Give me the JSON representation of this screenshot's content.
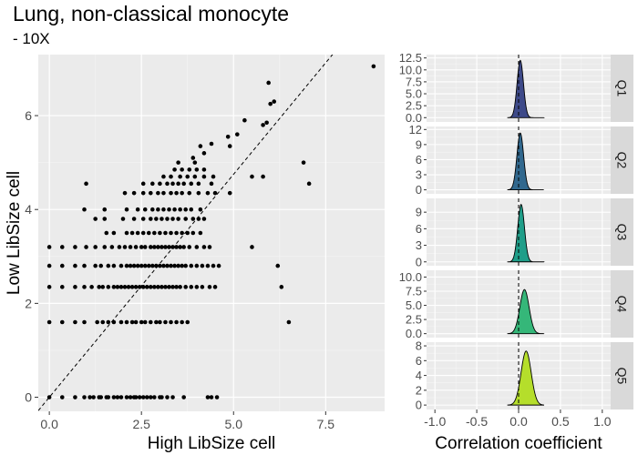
{
  "title": "Lung, non-classical monocyte",
  "subtitle": "- 10X",
  "chart_data": [
    {
      "type": "scatter",
      "xlabel": "High LibSize cell",
      "ylabel": "Low LibSize cell",
      "xlim": [
        -0.3,
        9.1
      ],
      "ylim": [
        -0.3,
        7.3
      ],
      "xticks": [
        0.0,
        2.5,
        5.0,
        7.5
      ],
      "xtick_labels": [
        "0.0",
        "2.5",
        "5.0",
        "7.5"
      ],
      "yticks": [
        0,
        2,
        4,
        6
      ],
      "ytick_labels": [
        "0",
        "2",
        "4",
        "6"
      ],
      "reference_line": {
        "style": "dashed",
        "intercept": 0,
        "slope": 0.95
      },
      "grid": true,
      "point_color": "#000000",
      "points": [
        [
          0.0,
          0.0
        ],
        [
          0.35,
          0.0
        ],
        [
          0.7,
          0.0
        ],
        [
          0.95,
          0.0
        ],
        [
          1.1,
          0.0
        ],
        [
          1.2,
          0.0
        ],
        [
          1.35,
          0.0
        ],
        [
          1.4,
          0.0
        ],
        [
          1.55,
          0.0
        ],
        [
          1.6,
          0.0
        ],
        [
          1.75,
          0.0
        ],
        [
          1.85,
          0.0
        ],
        [
          1.95,
          0.0
        ],
        [
          2.1,
          0.0
        ],
        [
          2.2,
          0.0
        ],
        [
          2.3,
          0.0
        ],
        [
          2.35,
          0.0
        ],
        [
          2.45,
          0.0
        ],
        [
          2.55,
          0.0
        ],
        [
          2.65,
          0.0
        ],
        [
          2.75,
          0.0
        ],
        [
          2.85,
          0.0
        ],
        [
          3.0,
          0.0
        ],
        [
          3.05,
          0.0
        ],
        [
          3.2,
          0.0
        ],
        [
          3.35,
          0.0
        ],
        [
          3.65,
          0.0
        ],
        [
          4.3,
          0.0
        ],
        [
          4.4,
          0.0
        ],
        [
          4.55,
          0.0
        ],
        [
          0.0,
          1.6
        ],
        [
          0.35,
          1.6
        ],
        [
          0.7,
          1.6
        ],
        [
          0.95,
          1.6
        ],
        [
          1.3,
          1.6
        ],
        [
          1.45,
          1.6
        ],
        [
          1.6,
          1.6
        ],
        [
          1.75,
          1.6
        ],
        [
          1.95,
          1.6
        ],
        [
          2.1,
          1.6
        ],
        [
          2.25,
          1.6
        ],
        [
          2.35,
          1.6
        ],
        [
          2.5,
          1.6
        ],
        [
          2.6,
          1.6
        ],
        [
          2.75,
          1.6
        ],
        [
          2.9,
          1.6
        ],
        [
          3.0,
          1.6
        ],
        [
          3.15,
          1.6
        ],
        [
          3.3,
          1.6
        ],
        [
          3.45,
          1.6
        ],
        [
          3.6,
          1.6
        ],
        [
          3.75,
          1.6
        ],
        [
          6.5,
          1.6
        ],
        [
          0.0,
          2.35
        ],
        [
          0.35,
          2.35
        ],
        [
          0.7,
          2.35
        ],
        [
          0.95,
          2.35
        ],
        [
          1.15,
          2.35
        ],
        [
          1.35,
          2.35
        ],
        [
          1.45,
          2.35
        ],
        [
          1.6,
          2.35
        ],
        [
          1.75,
          2.35
        ],
        [
          1.85,
          2.35
        ],
        [
          1.95,
          2.35
        ],
        [
          2.05,
          2.35
        ],
        [
          2.15,
          2.35
        ],
        [
          2.25,
          2.35
        ],
        [
          2.35,
          2.35
        ],
        [
          2.45,
          2.35
        ],
        [
          2.55,
          2.35
        ],
        [
          2.65,
          2.35
        ],
        [
          2.75,
          2.35
        ],
        [
          2.85,
          2.35
        ],
        [
          2.95,
          2.35
        ],
        [
          3.05,
          2.35
        ],
        [
          3.15,
          2.35
        ],
        [
          3.25,
          2.35
        ],
        [
          3.35,
          2.35
        ],
        [
          3.45,
          2.35
        ],
        [
          3.55,
          2.35
        ],
        [
          3.7,
          2.35
        ],
        [
          3.85,
          2.35
        ],
        [
          4.0,
          2.35
        ],
        [
          4.15,
          2.35
        ],
        [
          4.35,
          2.35
        ],
        [
          4.5,
          2.35
        ],
        [
          6.3,
          2.35
        ],
        [
          0.0,
          2.8
        ],
        [
          0.35,
          2.8
        ],
        [
          0.7,
          2.8
        ],
        [
          0.95,
          2.8
        ],
        [
          1.25,
          2.8
        ],
        [
          1.4,
          2.8
        ],
        [
          1.6,
          2.8
        ],
        [
          1.75,
          2.8
        ],
        [
          1.95,
          2.8
        ],
        [
          2.1,
          2.8
        ],
        [
          2.2,
          2.8
        ],
        [
          2.3,
          2.8
        ],
        [
          2.4,
          2.8
        ],
        [
          2.5,
          2.8
        ],
        [
          2.6,
          2.8
        ],
        [
          2.7,
          2.8
        ],
        [
          2.8,
          2.8
        ],
        [
          2.9,
          2.8
        ],
        [
          3.0,
          2.8
        ],
        [
          3.1,
          2.8
        ],
        [
          3.2,
          2.8
        ],
        [
          3.3,
          2.8
        ],
        [
          3.4,
          2.8
        ],
        [
          3.5,
          2.8
        ],
        [
          3.6,
          2.8
        ],
        [
          3.7,
          2.8
        ],
        [
          3.85,
          2.8
        ],
        [
          4.0,
          2.8
        ],
        [
          4.15,
          2.8
        ],
        [
          4.3,
          2.8
        ],
        [
          4.45,
          2.8
        ],
        [
          4.6,
          2.8
        ],
        [
          6.2,
          2.8
        ],
        [
          0.0,
          3.2
        ],
        [
          0.35,
          3.2
        ],
        [
          0.7,
          3.2
        ],
        [
          1.0,
          3.2
        ],
        [
          1.25,
          3.2
        ],
        [
          1.5,
          3.2
        ],
        [
          1.7,
          3.2
        ],
        [
          1.9,
          3.2
        ],
        [
          2.05,
          3.2
        ],
        [
          2.2,
          3.2
        ],
        [
          2.35,
          3.2
        ],
        [
          2.5,
          3.2
        ],
        [
          2.6,
          3.2
        ],
        [
          2.75,
          3.2
        ],
        [
          2.85,
          3.2
        ],
        [
          2.95,
          3.2
        ],
        [
          3.05,
          3.2
        ],
        [
          3.15,
          3.2
        ],
        [
          3.25,
          3.2
        ],
        [
          3.35,
          3.2
        ],
        [
          3.45,
          3.2
        ],
        [
          3.55,
          3.2
        ],
        [
          3.65,
          3.2
        ],
        [
          3.8,
          3.2
        ],
        [
          4.0,
          3.2
        ],
        [
          4.2,
          3.2
        ],
        [
          4.35,
          3.2
        ],
        [
          5.5,
          3.2
        ],
        [
          1.55,
          3.5
        ],
        [
          1.75,
          3.5
        ],
        [
          2.1,
          3.5
        ],
        [
          2.25,
          3.5
        ],
        [
          2.4,
          3.5
        ],
        [
          2.55,
          3.5
        ],
        [
          2.7,
          3.5
        ],
        [
          2.85,
          3.5
        ],
        [
          3.0,
          3.5
        ],
        [
          3.15,
          3.5
        ],
        [
          3.3,
          3.5
        ],
        [
          3.45,
          3.5
        ],
        [
          3.6,
          3.5
        ],
        [
          3.75,
          3.5
        ],
        [
          3.9,
          3.5
        ],
        [
          4.1,
          3.5
        ],
        [
          1.25,
          3.8
        ],
        [
          1.5,
          3.8
        ],
        [
          2.0,
          3.8
        ],
        [
          2.3,
          3.8
        ],
        [
          2.55,
          3.8
        ],
        [
          2.75,
          3.8
        ],
        [
          2.9,
          3.8
        ],
        [
          3.05,
          3.8
        ],
        [
          3.2,
          3.8
        ],
        [
          3.35,
          3.8
        ],
        [
          3.5,
          3.8
        ],
        [
          3.7,
          3.8
        ],
        [
          3.9,
          3.8
        ],
        [
          4.05,
          3.8
        ],
        [
          4.2,
          3.8
        ],
        [
          0.95,
          4.0
        ],
        [
          1.5,
          4.0
        ],
        [
          2.1,
          4.0
        ],
        [
          2.4,
          4.0
        ],
        [
          2.6,
          4.0
        ],
        [
          2.8,
          4.0
        ],
        [
          2.95,
          4.0
        ],
        [
          3.1,
          4.0
        ],
        [
          3.25,
          4.0
        ],
        [
          3.4,
          4.0
        ],
        [
          3.55,
          4.0
        ],
        [
          3.7,
          4.0
        ],
        [
          3.85,
          4.0
        ],
        [
          4.1,
          4.0
        ],
        [
          2.05,
          4.35
        ],
        [
          2.3,
          4.35
        ],
        [
          2.55,
          4.35
        ],
        [
          2.75,
          4.35
        ],
        [
          2.95,
          4.35
        ],
        [
          3.1,
          4.35
        ],
        [
          3.3,
          4.35
        ],
        [
          3.45,
          4.35
        ],
        [
          3.6,
          4.35
        ],
        [
          3.8,
          4.35
        ],
        [
          4.05,
          4.35
        ],
        [
          4.3,
          4.35
        ],
        [
          4.5,
          4.35
        ],
        [
          4.9,
          4.35
        ],
        [
          1.0,
          4.55
        ],
        [
          2.55,
          4.55
        ],
        [
          2.8,
          4.55
        ],
        [
          3.0,
          4.55
        ],
        [
          3.2,
          4.55
        ],
        [
          3.35,
          4.55
        ],
        [
          3.5,
          4.55
        ],
        [
          3.65,
          4.55
        ],
        [
          3.85,
          4.55
        ],
        [
          4.05,
          4.55
        ],
        [
          4.4,
          4.55
        ],
        [
          7.05,
          4.55
        ],
        [
          3.1,
          4.7
        ],
        [
          3.3,
          4.7
        ],
        [
          3.55,
          4.7
        ],
        [
          3.75,
          4.7
        ],
        [
          3.95,
          4.7
        ],
        [
          4.2,
          4.7
        ],
        [
          4.45,
          4.7
        ],
        [
          5.5,
          4.7
        ],
        [
          5.8,
          4.7
        ],
        [
          3.4,
          4.85
        ],
        [
          3.6,
          4.85
        ],
        [
          3.8,
          4.85
        ],
        [
          4.0,
          4.85
        ],
        [
          4.2,
          4.85
        ],
        [
          3.5,
          5.0
        ],
        [
          3.95,
          5.0
        ],
        [
          3.9,
          5.1
        ],
        [
          6.9,
          5.0
        ],
        [
          4.2,
          5.2
        ],
        [
          4.1,
          5.35
        ],
        [
          4.4,
          5.4
        ],
        [
          4.9,
          5.35
        ],
        [
          4.85,
          5.55
        ],
        [
          5.1,
          5.6
        ],
        [
          5.3,
          5.9
        ],
        [
          5.8,
          5.8
        ],
        [
          5.9,
          5.85
        ],
        [
          6.0,
          6.25
        ],
        [
          6.1,
          6.3
        ],
        [
          5.95,
          6.7
        ],
        [
          8.8,
          7.05
        ]
      ]
    },
    {
      "type": "area",
      "description_role": "density facets",
      "xlabel": "Correlation coefficient",
      "xlim": [
        -1.1,
        1.1
      ],
      "xticks": [
        -1.0,
        -0.5,
        0.0,
        0.5,
        1.0
      ],
      "xtick_labels": [
        "-1.0",
        "-0.5",
        "0.0",
        "0.5",
        "1.0"
      ],
      "reference_line": {
        "style": "dashed",
        "x": 0
      },
      "facets": [
        {
          "label": "Q1",
          "color": "#3e4a89",
          "mu": 0.02,
          "sigma": 0.038,
          "peak": 12.0,
          "ylim": [
            -0.9,
            13.2
          ],
          "yticks": [
            0,
            2.5,
            5,
            7.5,
            10,
            12.5
          ],
          "ytick_labels": [
            "0.0",
            "2.5",
            "5.0",
            "7.5",
            "10.0",
            "12.5"
          ]
        },
        {
          "label": "Q2",
          "color": "#31688e",
          "mu": 0.02,
          "sigma": 0.04,
          "peak": 11.3,
          "ylim": [
            -0.8,
            12.6
          ],
          "yticks": [
            0,
            3,
            6,
            9,
            12
          ],
          "ytick_labels": [
            "0",
            "3",
            "6",
            "9",
            "12"
          ]
        },
        {
          "label": "Q3",
          "color": "#1f9e89",
          "mu": 0.03,
          "sigma": 0.04,
          "peak": 10.4,
          "ylim": [
            -0.7,
            11.5
          ],
          "yticks": [
            0,
            3,
            6,
            9
          ],
          "ytick_labels": [
            "0",
            "3",
            "6",
            "9"
          ]
        },
        {
          "label": "Q4",
          "color": "#35b779",
          "mu": 0.07,
          "sigma": 0.055,
          "peak": 7.8,
          "ylim": [
            -0.7,
            11.2
          ],
          "yticks": [
            0,
            2.5,
            5,
            7.5,
            10
          ],
          "ytick_labels": [
            "0.0",
            "2.5",
            "5.0",
            "7.5",
            "10.0"
          ]
        },
        {
          "label": "Q5",
          "color": "#b5de2b",
          "mu": 0.09,
          "sigma": 0.06,
          "peak": 7.3,
          "ylim": [
            -0.6,
            8.5
          ],
          "yticks": [
            0,
            2,
            4,
            6,
            8
          ],
          "ytick_labels": [
            "0",
            "2",
            "4",
            "6",
            "8"
          ]
        }
      ]
    }
  ]
}
